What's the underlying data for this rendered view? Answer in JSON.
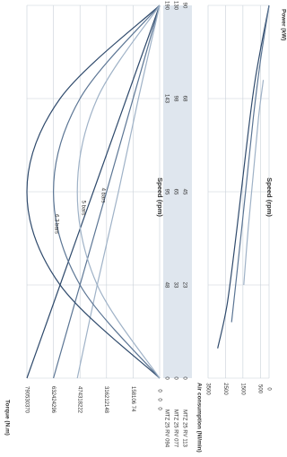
{
  "chart_data": [
    {
      "type": "line",
      "title": "",
      "xlabel": "Speed (rpm)",
      "ylabel": "Torque (N.m)",
      "right_label": "Power (kW)",
      "grid": true,
      "orientation": "rotated 90 degrees clockwise",
      "x_tick_rows": [
        {
          "model": "MTZ 25 RV 094",
          "ticks": [
            "0",
            "48",
            "95",
            "143",
            "190"
          ]
        },
        {
          "model": "MTZ 25 RV 077",
          "ticks": [
            "0",
            "33",
            "65",
            "98",
            "130"
          ]
        },
        {
          "model": "MTZ 25 RV 113",
          "ticks": [
            "0",
            "23",
            "45",
            "68",
            "90"
          ]
        }
      ],
      "y_tick_columns": [
        [
          "790",
          "632",
          "474",
          "316",
          "158",
          "0"
        ],
        [
          "530",
          "424",
          "318",
          "212",
          "106",
          "0"
        ],
        [
          "370",
          "296",
          "222",
          "148",
          "74",
          "0"
        ]
      ],
      "annotations": [
        "6.3 bars",
        "5 bars",
        "4 bars"
      ],
      "series": [
        {
          "label": "6.3 bars",
          "kind": "torque",
          "x": [
            0,
            0.25,
            0.5,
            0.75,
            1.0
          ],
          "y": [
            1.0,
            0.75,
            0.5,
            0.25,
            0.0
          ]
        },
        {
          "label": "5 bars",
          "kind": "torque",
          "x": [
            0,
            0.25,
            0.5,
            0.75,
            1.0
          ],
          "y": [
            0.8,
            0.6,
            0.4,
            0.2,
            0.0
          ]
        },
        {
          "label": "4 bars",
          "kind": "torque",
          "x": [
            0,
            0.25,
            0.5,
            0.75,
            1.0
          ],
          "y": [
            0.62,
            0.47,
            0.31,
            0.16,
            0.0
          ]
        },
        {
          "label": "6.3 bars",
          "kind": "power",
          "x": [
            0,
            0.25,
            0.5,
            0.75,
            1.0
          ],
          "y": [
            0.0,
            0.75,
            1.0,
            0.75,
            0.0
          ]
        },
        {
          "label": "5 bars",
          "kind": "power",
          "x": [
            0,
            0.25,
            0.5,
            0.75,
            1.0
          ],
          "y": [
            0.0,
            0.6,
            0.8,
            0.6,
            0.0
          ]
        },
        {
          "label": "4 bars",
          "kind": "power",
          "x": [
            0,
            0.25,
            0.5,
            0.75,
            1.0
          ],
          "y": [
            0.0,
            0.47,
            0.62,
            0.47,
            0.0
          ]
        }
      ]
    },
    {
      "type": "line",
      "title": "",
      "xlabel": "Speed (rpm)",
      "ylabel": "Air consumption (Nl/min)",
      "grid": true,
      "orientation": "rotated 90 degrees clockwise",
      "yticks": [
        0,
        500,
        1500,
        2500,
        3500
      ],
      "ylim": [
        0,
        3500
      ],
      "series": [
        {
          "label": "6.3 bars",
          "x": [
            0.08,
            0.2,
            0.4,
            0.6,
            0.8,
            1.0
          ],
          "y": [
            2950,
            2400,
            1850,
            1350,
            800,
            0
          ]
        },
        {
          "label": "5 bars",
          "x": [
            0.15,
            0.3,
            0.5,
            0.7,
            0.85,
            1.0
          ],
          "y": [
            2150,
            1800,
            1350,
            900,
            500,
            0
          ]
        },
        {
          "label": "4 bars",
          "x": [
            0.25,
            0.4,
            0.55,
            0.7,
            0.8
          ],
          "y": [
            1450,
            1200,
            900,
            600,
            330
          ]
        }
      ]
    }
  ],
  "colors": {
    "series_dark": "#2f4a6c",
    "series_mid": "#5b7594",
    "series_light": "#9fb2c7",
    "grid": "#c8d0d8",
    "band": "#dfe6ee",
    "text": "#333333"
  }
}
